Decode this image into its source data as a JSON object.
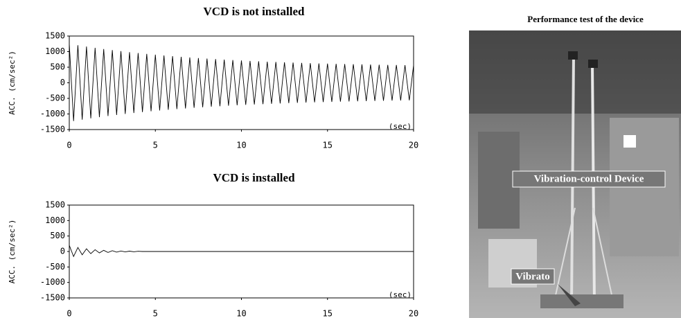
{
  "chart_data": [
    {
      "type": "line",
      "title": "VCD is not installed",
      "ylabel": "ACC. (cm/sec²)",
      "x_annotation": "(sec)",
      "xlim": [
        0,
        20
      ],
      "xticks": [
        0,
        5,
        10,
        15,
        20
      ],
      "ylim": [
        -1500,
        1500
      ],
      "yticks": [
        -1500,
        -1000,
        -500,
        0,
        500,
        1000,
        1500
      ],
      "x": [
        0,
        0.25,
        0.5,
        0.75,
        1,
        1.25,
        1.5,
        1.75,
        2,
        2.25,
        2.5,
        2.75,
        3,
        3.25,
        3.5,
        3.75,
        4,
        4.25,
        4.5,
        4.75,
        5,
        5.25,
        5.5,
        5.75,
        6,
        6.25,
        6.5,
        6.75,
        7,
        7.25,
        7.5,
        7.75,
        8,
        8.25,
        8.5,
        8.75,
        9,
        9.25,
        9.5,
        9.75,
        10,
        10.25,
        10.5,
        10.75,
        11,
        11.25,
        11.5,
        11.75,
        12,
        12.25,
        12.5,
        12.75,
        13,
        13.25,
        13.5,
        13.75,
        14,
        14.25,
        14.5,
        14.75,
        15,
        15.25,
        15.5,
        15.75,
        16,
        16.25,
        16.5,
        16.75,
        17,
        17.25,
        17.5,
        17.75,
        18,
        18.25,
        18.5,
        18.75,
        19,
        19.25,
        19.5,
        19.75,
        20
      ],
      "color": "#000000",
      "values": [
        1250,
        -1227,
        1205,
        -1183,
        1162,
        -1141,
        1122,
        -1103,
        1084,
        -1066,
        1049,
        -1032,
        1015,
        -1000,
        984,
        -969,
        955,
        -941,
        927,
        -914,
        901,
        -889,
        877,
        -866,
        854,
        -843,
        833,
        -823,
        813,
        -803,
        794,
        -785,
        776,
        -767,
        759,
        -751,
        744,
        -736,
        729,
        -722,
        715,
        -708,
        702,
        -696,
        690,
        -684,
        678,
        -673,
        667,
        -662,
        657,
        -652,
        648,
        -643,
        639,
        -634,
        630,
        -626,
        622,
        -619,
        615,
        -612,
        608,
        -605,
        601,
        -598,
        595,
        -592,
        590,
        -587,
        584,
        -582,
        579,
        -577,
        574,
        -572,
        570,
        -568,
        566,
        -564,
        562
      ]
    },
    {
      "type": "line",
      "title": "VCD is installed",
      "ylabel": "ACC. (cm/sec²)",
      "x_annotation": "(sec)",
      "xlim": [
        0,
        20
      ],
      "xticks": [
        0,
        5,
        10,
        15,
        20
      ],
      "ylim": [
        -1500,
        1500
      ],
      "yticks": [
        -1500,
        -1000,
        -500,
        0,
        500,
        1000,
        1500
      ],
      "x": [
        0,
        0.25,
        0.5,
        0.75,
        1,
        1.25,
        1.5,
        1.75,
        2,
        2.25,
        2.5,
        2.75,
        3,
        3.25,
        3.5,
        3.75,
        4,
        4.25,
        4.5,
        4.75,
        5,
        5.25,
        5.5,
        5.75,
        6,
        6.25,
        6.5,
        6.75,
        7,
        7.25,
        7.5,
        7.75,
        8,
        8.25,
        8.5,
        8.75,
        9,
        9.25,
        9.5,
        9.75,
        10,
        10.25,
        10.5,
        10.75,
        11,
        11.25,
        11.5,
        11.75,
        12,
        12.25,
        12.5,
        12.75,
        13,
        13.25,
        13.5,
        13.75,
        14,
        14.25,
        14.5,
        14.75,
        15,
        15.25,
        15.5,
        15.75,
        16,
        16.25,
        16.5,
        16.75,
        17,
        17.25,
        17.5,
        17.75,
        18,
        18.25,
        18.5,
        18.75,
        19,
        19.25,
        19.5,
        19.75,
        20
      ],
      "color": "#000000",
      "values": [
        200,
        -162,
        131,
        -107,
        87,
        -70,
        57,
        -46,
        38,
        -31,
        25,
        -20,
        16,
        -13,
        11,
        -9,
        7,
        0,
        0,
        0,
        0,
        0,
        0,
        0,
        0,
        0,
        0,
        0,
        0,
        0,
        0,
        0,
        0,
        0,
        0,
        0,
        0,
        0,
        0,
        0,
        0,
        0,
        0,
        0,
        0,
        0,
        0,
        0,
        0,
        0,
        0,
        0,
        0,
        0,
        0,
        0,
        0,
        0,
        0,
        0,
        0,
        0,
        0,
        0,
        0,
        0,
        0,
        0,
        0,
        0,
        0,
        0,
        0,
        0,
        0,
        0,
        0,
        0,
        0,
        0,
        0
      ]
    }
  ],
  "photo": {
    "title": "Performance test of the device",
    "labels": [
      "Vibration-control Device",
      "Vibrato"
    ]
  }
}
